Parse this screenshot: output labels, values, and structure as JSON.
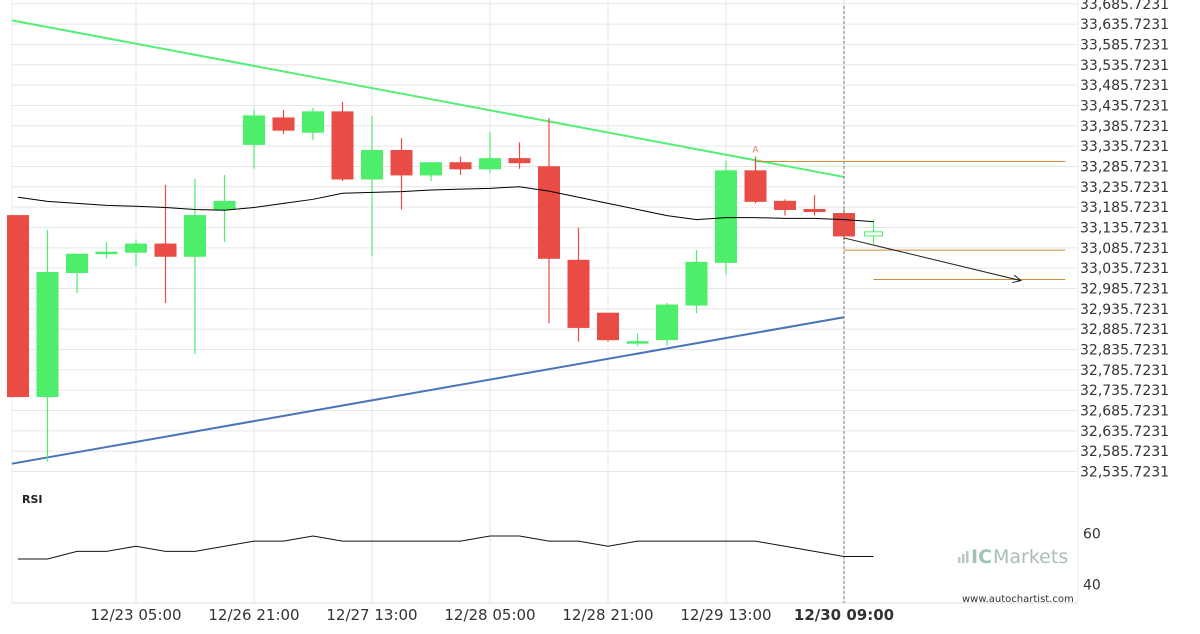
{
  "chart_data": {
    "type": "candlestick",
    "y_axis_ticks": [
      "33,685.7231",
      "33,635.7231",
      "33,585.7231",
      "33,535.7231",
      "33,485.7231",
      "33,435.7231",
      "33,385.7231",
      "33,335.7231",
      "33,285.7231",
      "33,235.7231",
      "33,185.7231",
      "33,135.7231",
      "33,085.7231",
      "33,035.7231",
      "32,985.7231",
      "32,935.7231",
      "32,885.7231",
      "32,835.7231",
      "32,785.7231",
      "32,735.7231",
      "32,685.7231",
      "32,635.7231",
      "32,585.7231",
      "32,535.7231"
    ],
    "ylim": [
      32510,
      33695
    ],
    "x_axis_ticks": [
      {
        "label": "12/23 05:00",
        "index": 4
      },
      {
        "label": "12/26 21:00",
        "index": 8
      },
      {
        "label": "12/27 13:00",
        "index": 12
      },
      {
        "label": "12/28 05:00",
        "index": 16
      },
      {
        "label": "12/28 21:00",
        "index": 20
      },
      {
        "label": "12/29 13:00",
        "index": 24
      },
      {
        "label": "12/30 09:00",
        "index": 28,
        "bold": true
      }
    ],
    "candles": [
      {
        "o": 33165,
        "h": 33165,
        "l": 32720,
        "c": 32720
      },
      {
        "o": 32720,
        "h": 33130,
        "l": 32560,
        "c": 33025
      },
      {
        "o": 33025,
        "h": 33070,
        "l": 32975,
        "c": 33070
      },
      {
        "o": 33075,
        "h": 33100,
        "l": 33060,
        "c": 33075
      },
      {
        "o": 33075,
        "h": 33105,
        "l": 33040,
        "c": 33095
      },
      {
        "o": 33095,
        "h": 33240,
        "l": 32950,
        "c": 33065
      },
      {
        "o": 33065,
        "h": 33255,
        "l": 32825,
        "c": 33165
      },
      {
        "o": 33180,
        "h": 33265,
        "l": 33100,
        "c": 33200
      },
      {
        "o": 33340,
        "h": 33425,
        "l": 33280,
        "c": 33410
      },
      {
        "o": 33405,
        "h": 33425,
        "l": 33365,
        "c": 33375
      },
      {
        "o": 33370,
        "h": 33430,
        "l": 33350,
        "c": 33420
      },
      {
        "o": 33420,
        "h": 33445,
        "l": 33250,
        "c": 33255
      },
      {
        "o": 33255,
        "h": 33410,
        "l": 33065,
        "c": 33325
      },
      {
        "o": 33325,
        "h": 33355,
        "l": 33180,
        "c": 33265
      },
      {
        "o": 33265,
        "h": 33295,
        "l": 33250,
        "c": 33295
      },
      {
        "o": 33295,
        "h": 33310,
        "l": 33265,
        "c": 33280
      },
      {
        "o": 33280,
        "h": 33370,
        "l": 33270,
        "c": 33305
      },
      {
        "o": 33305,
        "h": 33345,
        "l": 33280,
        "c": 33295
      },
      {
        "o": 33285,
        "h": 33405,
        "l": 32900,
        "c": 33060
      },
      {
        "o": 33055,
        "h": 33135,
        "l": 32855,
        "c": 32890
      },
      {
        "o": 32925,
        "h": 32925,
        "l": 32855,
        "c": 32860
      },
      {
        "o": 32855,
        "h": 32875,
        "l": 32845,
        "c": 32855
      },
      {
        "o": 32860,
        "h": 32950,
        "l": 32845,
        "c": 32945
      },
      {
        "o": 32945,
        "h": 33080,
        "l": 32925,
        "c": 33050
      },
      {
        "o": 33050,
        "h": 33300,
        "l": 33020,
        "c": 33275
      },
      {
        "o": 33275,
        "h": 33310,
        "l": 33195,
        "c": 33200
      },
      {
        "o": 33200,
        "h": 33205,
        "l": 33165,
        "c": 33180
      },
      {
        "o": 33180,
        "h": 33215,
        "l": 33165,
        "c": 33175
      },
      {
        "o": 33170,
        "h": 33180,
        "l": 33105,
        "c": 33115
      },
      {
        "o": 33115,
        "h": 33155,
        "l": 33095,
        "c": 33125
      }
    ],
    "moving_average": [
      33210,
      33200,
      33195,
      33190,
      33188,
      33185,
      33180,
      33178,
      33185,
      33195,
      33205,
      33220,
      33222,
      33224,
      33228,
      33230,
      33232,
      33236,
      33225,
      33210,
      33195,
      33180,
      33165,
      33155,
      33160,
      33160,
      33158,
      33158,
      33155,
      33150
    ],
    "resistance_line": {
      "from": [
        0,
        33645
      ],
      "to": [
        28,
        33260
      ]
    },
    "support_line": {
      "from": [
        0,
        32555
      ],
      "to": [
        28,
        32915
      ]
    },
    "projection_arrow": {
      "from": [
        28,
        33110
      ],
      "to": [
        34,
        33005
      ]
    },
    "level_lines": [
      {
        "y": 33298,
        "from_index": 25,
        "to_index": 35.5
      },
      {
        "y": 33080,
        "from_index": 28,
        "to_index": 35.5
      },
      {
        "y": 33008,
        "from_index": 29,
        "to_index": 35.5
      }
    ],
    "annotation": {
      "text": "A",
      "index": 25
    },
    "current_bar_index": 28,
    "rsi": {
      "label": "RSI",
      "ticks": [
        "60",
        "40"
      ],
      "ylim": [
        30,
        70
      ],
      "values": [
        50,
        50,
        53,
        53,
        55,
        53,
        53,
        55,
        57,
        57,
        59,
        57,
        57,
        57,
        57,
        57,
        59,
        59,
        57,
        57,
        55,
        57,
        57,
        57,
        57,
        57,
        55,
        53,
        51,
        51
      ]
    },
    "colors": {
      "up": "#4cee6a",
      "down": "#e84c44",
      "ma": "#000000",
      "resistance": "#55ee77",
      "support": "#4a74b8",
      "level": "#d0893a",
      "annotation": "#e87a5a",
      "grid": "#e6e6e6"
    },
    "watermark": "www.autochartist.com",
    "brand": {
      "prefix": "IC",
      "name": "Markets"
    }
  }
}
